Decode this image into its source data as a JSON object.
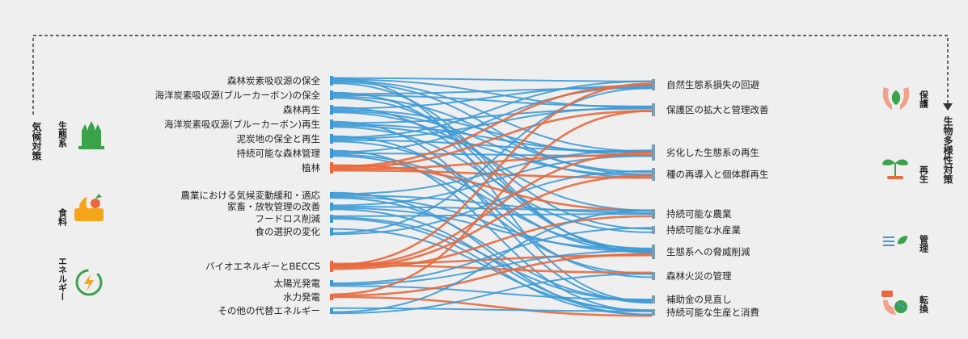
{
  "left_group_label": "気候対策",
  "right_group_label": "生物多様性対策",
  "colors": {
    "blue": "#3d9ad6",
    "orange": "#e8693d",
    "green": "#3aa24a",
    "red": "#e8693d"
  },
  "left_categories": [
    {
      "name": "生態系",
      "icon": "forest-icon"
    },
    {
      "name": "食料",
      "icon": "crop-basket-icon"
    },
    {
      "name": "エネルギー",
      "icon": "energy-cycle-icon"
    }
  ],
  "right_categories": [
    {
      "name": "保護",
      "icon": "hands-leaf-icon"
    },
    {
      "name": "再生",
      "icon": "sprout-icon"
    },
    {
      "name": "管理",
      "icon": "water-leaf-icon"
    },
    {
      "name": "転換",
      "icon": "hand-globe-icon"
    }
  ],
  "left_items": [
    "森林炭素吸収源の保全",
    "海洋炭素吸収源(ブルーカーボン)の保全",
    "森林再生",
    "海洋炭素吸収源(ブルーカーボン)再生",
    "泥炭地の保全と再生",
    "持続可能な森林管理",
    "植林",
    "農業における気候変動緩和・適応",
    "家畜・放牧管理の改善",
    "フードロス削減",
    "食の選択の変化",
    "バイオエネルギーとBECCS",
    "太陽光発電",
    "水力発電",
    "その他の代替エネルギー"
  ],
  "right_items": [
    "自然生態系損失の回避",
    "保護区の拡大と管理改善",
    "劣化した生態系の再生",
    "種の再導入と個体群再生",
    "持続可能な農業",
    "持続可能な水産業",
    "生態系への脅威削減",
    "森林火災の管理",
    "補助金の見直し",
    "持続可能な生産と消費"
  ]
}
